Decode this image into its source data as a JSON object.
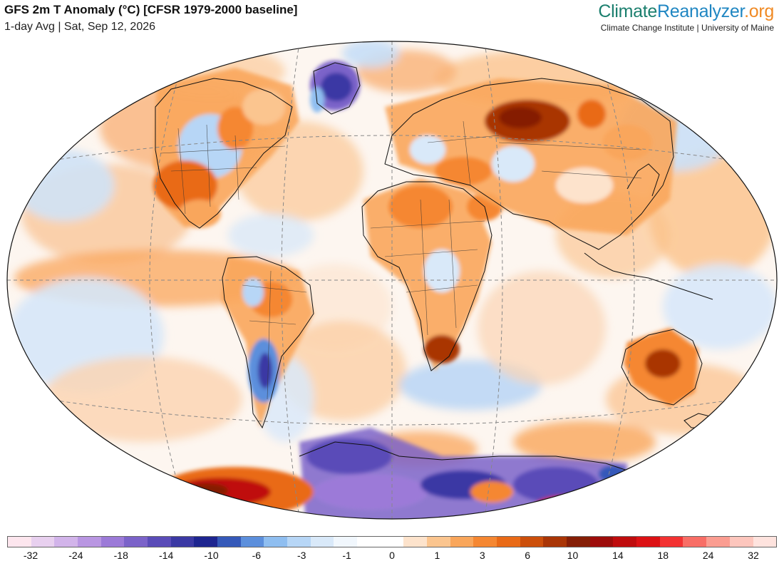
{
  "header": {
    "title": "GFS 2m T Anomaly (°C) [CFSR 1979-2000 baseline]",
    "subtitle": "1-day Avg | Sat, Sep 12, 2026"
  },
  "brand": {
    "part1": "Climate",
    "part2": "Reanalyzer",
    "part3": ".org",
    "affiliation": "Climate Change Institute | University of Maine"
  },
  "legend": {
    "colors": [
      "#fde6ee",
      "#e8d0ef",
      "#d2b4ea",
      "#b996e2",
      "#9c7ad8",
      "#7b63c9",
      "#5a4cb8",
      "#3b39a4",
      "#1e2590",
      "#3559b9",
      "#5c8fdc",
      "#8fbef0",
      "#b7d6f6",
      "#d9e9f9",
      "#f1f7fd",
      "#ffffff",
      "#ffffff",
      "#fde3cc",
      "#fbc58f",
      "#f9a65b",
      "#f58732",
      "#e96a17",
      "#cc4f0b",
      "#a93506",
      "#851e06",
      "#9d0c0a",
      "#bf0c0d",
      "#dc1114",
      "#f33232",
      "#f86e66",
      "#fb9d91",
      "#fdc6bd",
      "#fee3de"
    ],
    "labels": [
      "-32",
      "-24",
      "-18",
      "-14",
      "-10",
      "-6",
      "-3",
      "-1",
      "0",
      "1",
      "3",
      "6",
      "10",
      "14",
      "18",
      "24",
      "32"
    ]
  },
  "map": {
    "projection": "Winkel Tripel",
    "ocean_base": "near-zero anomaly",
    "features": [
      "coastlines",
      "country borders",
      "US state borders",
      "graticule (dashed)"
    ]
  }
}
